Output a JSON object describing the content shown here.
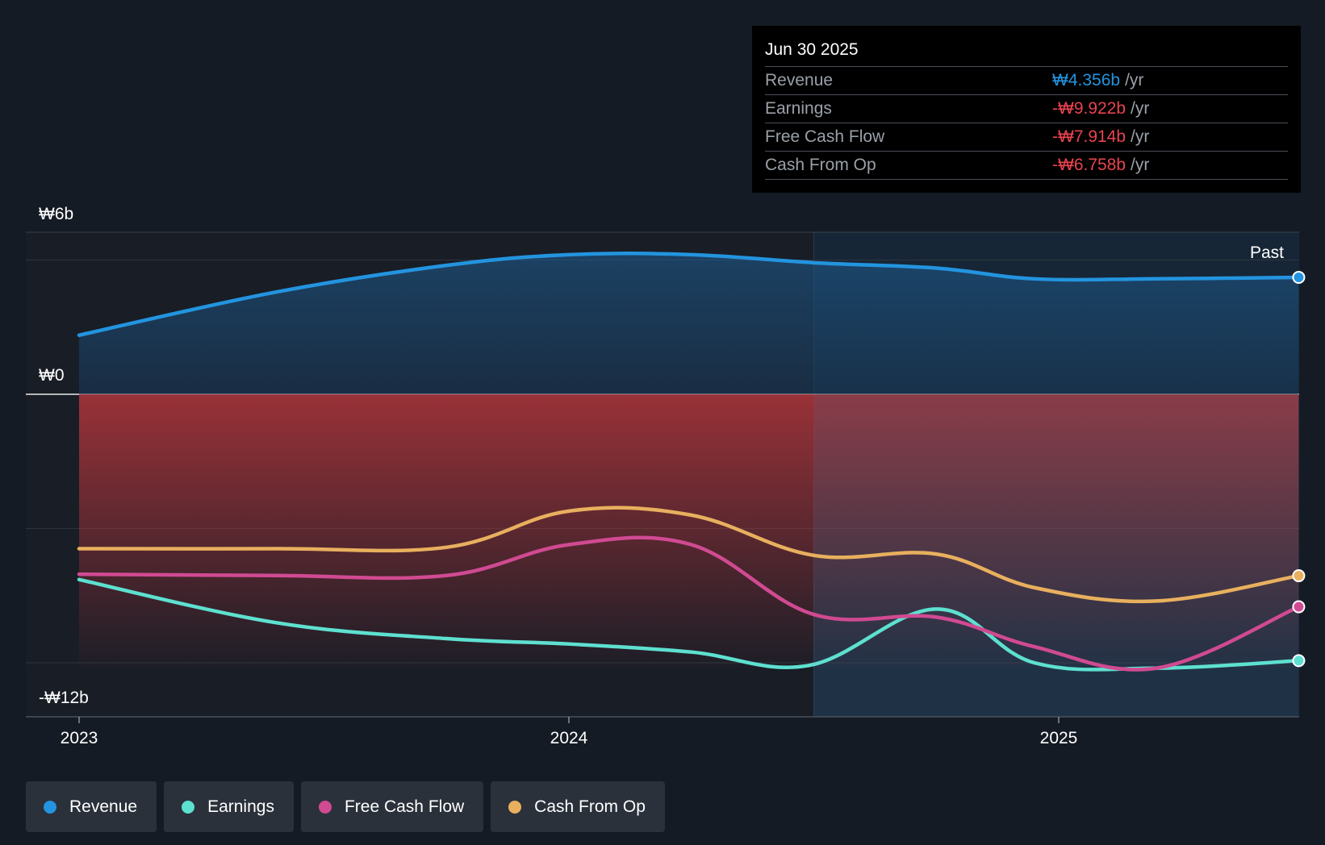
{
  "chart_data": {
    "type": "area",
    "title": "",
    "currency_symbol": "₩",
    "y_axis": {
      "min": -12,
      "max": 6,
      "unit": "b",
      "labels": [
        {
          "value": 6,
          "text": "₩6b"
        },
        {
          "value": 0,
          "text": "₩0"
        },
        {
          "value": -12,
          "text": "-₩12b"
        }
      ],
      "gridlines": [
        5,
        0,
        -5,
        -10
      ]
    },
    "x_axis": {
      "min": 2023.0,
      "max": 2025.49,
      "ticks": [
        {
          "value": 2023.0,
          "text": "2023"
        },
        {
          "value": 2024.0,
          "text": "2024"
        },
        {
          "value": 2025.0,
          "text": "2025"
        }
      ]
    },
    "past_start": 2024.5,
    "past_label": "Past",
    "series": [
      {
        "name": "Revenue",
        "color": "#2394df",
        "fill": true,
        "points": [
          [
            2023.0,
            2.2
          ],
          [
            2023.4,
            3.8
          ],
          [
            2023.75,
            4.8
          ],
          [
            2024.0,
            5.2
          ],
          [
            2024.25,
            5.2
          ],
          [
            2024.5,
            4.9
          ],
          [
            2024.75,
            4.7
          ],
          [
            2024.95,
            4.3
          ],
          [
            2025.2,
            4.3
          ],
          [
            2025.49,
            4.356
          ]
        ]
      },
      {
        "name": "Earnings",
        "color": "#5ee0d0",
        "fill": false,
        "points": [
          [
            2023.0,
            -6.9
          ],
          [
            2023.4,
            -8.5
          ],
          [
            2023.75,
            -9.1
          ],
          [
            2024.0,
            -9.3
          ],
          [
            2024.25,
            -9.6
          ],
          [
            2024.49,
            -10.1
          ],
          [
            2024.75,
            -8.0
          ],
          [
            2024.95,
            -10.0
          ],
          [
            2025.2,
            -10.2
          ],
          [
            2025.49,
            -9.922
          ]
        ]
      },
      {
        "name": "Free Cash Flow",
        "color": "#d04a92",
        "fill": false,
        "points": [
          [
            2023.0,
            -6.7
          ],
          [
            2023.4,
            -6.75
          ],
          [
            2023.75,
            -6.75
          ],
          [
            2024.0,
            -5.6
          ],
          [
            2024.25,
            -5.6
          ],
          [
            2024.5,
            -8.2
          ],
          [
            2024.75,
            -8.3
          ],
          [
            2024.95,
            -9.4
          ],
          [
            2025.2,
            -10.2
          ],
          [
            2025.49,
            -7.914
          ]
        ]
      },
      {
        "name": "Cash From Op",
        "color": "#e8b05e",
        "fill": false,
        "points": [
          [
            2023.0,
            -5.75
          ],
          [
            2023.4,
            -5.75
          ],
          [
            2023.75,
            -5.7
          ],
          [
            2024.0,
            -4.35
          ],
          [
            2024.25,
            -4.5
          ],
          [
            2024.5,
            -6.0
          ],
          [
            2024.75,
            -5.95
          ],
          [
            2024.95,
            -7.2
          ],
          [
            2025.2,
            -7.7
          ],
          [
            2025.49,
            -6.758
          ]
        ]
      }
    ]
  },
  "tooltip": {
    "date": "Jun 30 2025",
    "rows": [
      {
        "name": "Revenue",
        "value": "₩4.356b",
        "unit": "/yr",
        "color": "#2394df"
      },
      {
        "name": "Earnings",
        "value": "-₩9.922b",
        "unit": "/yr",
        "color": "#e8434f"
      },
      {
        "name": "Free Cash Flow",
        "value": "-₩7.914b",
        "unit": "/yr",
        "color": "#e8434f"
      },
      {
        "name": "Cash From Op",
        "value": "-₩6.758b",
        "unit": "/yr",
        "color": "#e8434f"
      }
    ]
  },
  "legend": [
    {
      "label": "Revenue",
      "color": "#2394df"
    },
    {
      "label": "Earnings",
      "color": "#5ee0d0"
    },
    {
      "label": "Free Cash Flow",
      "color": "#d04a92"
    },
    {
      "label": "Cash From Op",
      "color": "#e8b05e"
    }
  ]
}
